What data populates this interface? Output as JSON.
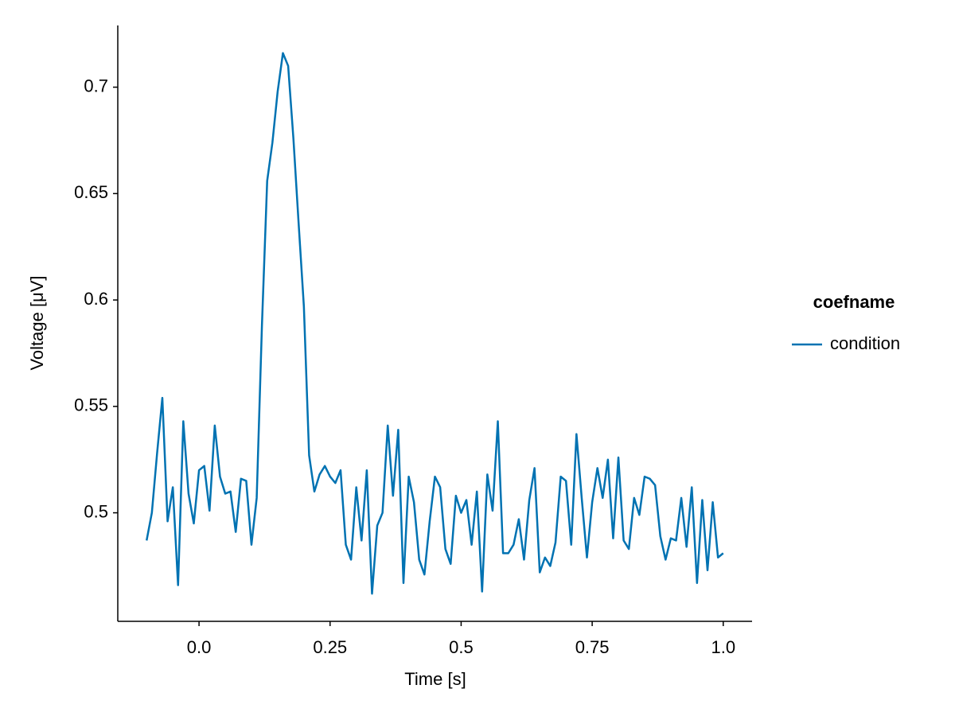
{
  "chart_data": {
    "type": "line",
    "x_label": "Time [s]",
    "y_label": "Voltage [μV]",
    "legend_title": "coefname",
    "x": [
      -0.1,
      -0.09,
      -0.08,
      -0.07,
      -0.06,
      -0.05,
      -0.04,
      -0.03,
      -0.02,
      -0.01,
      0,
      0.01,
      0.02,
      0.03,
      0.04,
      0.05,
      0.06,
      0.07,
      0.08,
      0.09,
      0.1,
      0.11,
      0.12,
      0.13,
      0.14,
      0.15,
      0.16,
      0.17,
      0.18,
      0.19,
      0.2,
      0.21,
      0.22,
      0.23,
      0.24,
      0.25,
      0.26,
      0.27,
      0.28,
      0.29,
      0.3,
      0.31,
      0.32,
      0.33,
      0.34,
      0.35,
      0.36,
      0.37,
      0.38,
      0.39,
      0.4,
      0.41,
      0.42,
      0.43,
      0.44,
      0.45,
      0.46,
      0.47,
      0.48,
      0.49,
      0.5,
      0.51,
      0.52,
      0.53,
      0.54,
      0.55,
      0.56,
      0.57,
      0.58,
      0.59,
      0.6,
      0.61,
      0.62,
      0.63,
      0.64,
      0.65,
      0.66,
      0.67,
      0.68,
      0.69,
      0.7,
      0.71,
      0.72,
      0.73,
      0.74,
      0.75,
      0.76,
      0.77,
      0.78,
      0.79,
      0.8,
      0.81,
      0.82,
      0.83,
      0.84,
      0.85,
      0.86,
      0.87,
      0.88,
      0.89,
      0.9,
      0.91,
      0.92,
      0.93,
      0.94,
      0.95,
      0.96,
      0.97,
      0.98,
      0.99,
      1
    ],
    "series": [
      {
        "name": "condition",
        "color": "#0072b2",
        "values": [
          0.487,
          0.5,
          0.528,
          0.554,
          0.496,
          0.512,
          0.466,
          0.543,
          0.509,
          0.495,
          0.52,
          0.522,
          0.501,
          0.541,
          0.517,
          0.509,
          0.51,
          0.491,
          0.516,
          0.515,
          0.485,
          0.507,
          0.588,
          0.656,
          0.674,
          0.698,
          0.716,
          0.71,
          0.676,
          0.636,
          0.597,
          0.527,
          0.51,
          0.518,
          0.522,
          0.517,
          0.514,
          0.52,
          0.485,
          0.478,
          0.512,
          0.487,
          0.52,
          0.462,
          0.494,
          0.5,
          0.541,
          0.508,
          0.539,
          0.467,
          0.517,
          0.505,
          0.478,
          0.471,
          0.496,
          0.517,
          0.512,
          0.483,
          0.476,
          0.508,
          0.5,
          0.506,
          0.485,
          0.51,
          0.463,
          0.518,
          0.501,
          0.543,
          0.481,
          0.481,
          0.485,
          0.497,
          0.478,
          0.506,
          0.521,
          0.472,
          0.479,
          0.475,
          0.486,
          0.517,
          0.515,
          0.485,
          0.537,
          0.507,
          0.479,
          0.505,
          0.521,
          0.507,
          0.525,
          0.488,
          0.526,
          0.487,
          0.483,
          0.507,
          0.499,
          0.517,
          0.516,
          0.513,
          0.489,
          0.478,
          0.488,
          0.487,
          0.507,
          0.484,
          0.512,
          0.467,
          0.506,
          0.473,
          0.505,
          0.479,
          0.481
        ]
      }
    ],
    "xlim": [
      -0.155,
      1.055
    ],
    "ylim": [
      0.449,
      0.729
    ],
    "xticks": [
      {
        "value": 0,
        "label": "0.0"
      },
      0.25,
      0.5,
      0.75,
      {
        "value": 1,
        "label": "1.0"
      }
    ],
    "yticks": [
      0.5,
      0.55,
      0.6,
      0.65,
      0.7
    ],
    "grid": false
  }
}
